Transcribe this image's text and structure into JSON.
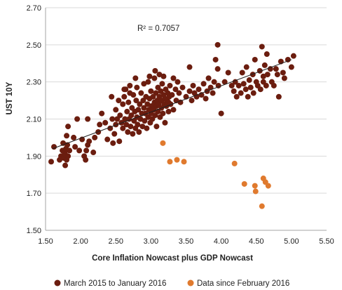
{
  "chart_data": {
    "type": "scatter",
    "xlabel": "Core Inflation Nowcast plus GDP Nowcast",
    "ylabel": "UST 10Y",
    "xlim": [
      1.5,
      5.5
    ],
    "ylim": [
      1.5,
      2.7
    ],
    "x_ticks": [
      "1.50",
      "2.00",
      "2.50",
      "3.00",
      "3.50",
      "4.00",
      "4.50",
      "5.00",
      "5.50"
    ],
    "y_ticks": [
      "1.50",
      "1.70",
      "1.90",
      "2.10",
      "2.30",
      "2.50",
      "2.70"
    ],
    "grid": "horizontal",
    "legend_position": "bottom",
    "annotation": "R² = 0.7057",
    "trendline": {
      "series": "March 2015 to January 2016",
      "x": [
        1.6,
        5.0
      ],
      "y": [
        1.94,
        2.42
      ]
    },
    "series": [
      {
        "name": "March 2015 to January 2016",
        "color": "#6B1D0F",
        "points": [
          [
            1.58,
            1.87
          ],
          [
            1.62,
            1.95
          ],
          [
            1.7,
            1.88
          ],
          [
            1.72,
            1.9
          ],
          [
            1.74,
            1.93
          ],
          [
            1.75,
            1.97
          ],
          [
            1.76,
            1.89
          ],
          [
            1.77,
            1.92
          ],
          [
            1.78,
            1.85
          ],
          [
            1.78,
            1.91
          ],
          [
            1.79,
            1.94
          ],
          [
            1.8,
            1.88
          ],
          [
            1.8,
            2.01
          ],
          [
            1.81,
            1.96
          ],
          [
            1.82,
            1.9
          ],
          [
            1.82,
            2.06
          ],
          [
            1.84,
            1.93
          ],
          [
            1.9,
            2.0
          ],
          [
            1.92,
            1.95
          ],
          [
            1.95,
            2.1
          ],
          [
            1.98,
            1.93
          ],
          [
            2.02,
            1.99
          ],
          [
            2.05,
            1.9
          ],
          [
            2.07,
            1.88
          ],
          [
            2.08,
            1.93
          ],
          [
            2.1,
            1.96
          ],
          [
            2.1,
            2.1
          ],
          [
            2.12,
            1.98
          ],
          [
            2.18,
            1.92
          ],
          [
            2.2,
            2.0
          ],
          [
            2.25,
            2.03
          ],
          [
            2.27,
            2.07
          ],
          [
            2.3,
            2.13
          ],
          [
            2.35,
            2.08
          ],
          [
            2.38,
            1.99
          ],
          [
            2.42,
            2.05
          ],
          [
            2.45,
            2.1
          ],
          [
            2.46,
            1.97
          ],
          [
            2.48,
            2.02
          ],
          [
            2.5,
            2.07
          ],
          [
            2.5,
            2.15
          ],
          [
            2.52,
            2.1
          ],
          [
            2.54,
            2.2
          ],
          [
            2.55,
            1.98
          ],
          [
            2.56,
            2.12
          ],
          [
            2.58,
            2.08
          ],
          [
            2.6,
            2.05
          ],
          [
            2.6,
            2.18
          ],
          [
            2.62,
            2.22
          ],
          [
            2.63,
            2.1
          ],
          [
            2.64,
            2.26
          ],
          [
            2.65,
            2.07
          ],
          [
            2.66,
            2.14
          ],
          [
            2.67,
            2.03
          ],
          [
            2.68,
            2.19
          ],
          [
            2.69,
            2.1
          ],
          [
            2.7,
            2.28
          ],
          [
            2.71,
            2.06
          ],
          [
            2.72,
            2.12
          ],
          [
            2.73,
            2.16
          ],
          [
            2.74,
            2.02
          ],
          [
            2.75,
            2.23
          ],
          [
            2.76,
            2.09
          ],
          [
            2.77,
            2.14
          ],
          [
            2.78,
            2.05
          ],
          [
            2.79,
            2.2
          ],
          [
            2.8,
            2.11
          ],
          [
            2.8,
            2.27
          ],
          [
            2.81,
            2.07
          ],
          [
            2.82,
            2.15
          ],
          [
            2.83,
            2.03
          ],
          [
            2.84,
            2.18
          ],
          [
            2.85,
            2.1
          ],
          [
            2.86,
            2.24
          ],
          [
            2.87,
            2.13
          ],
          [
            2.88,
            2.06
          ],
          [
            2.89,
            2.2
          ],
          [
            2.9,
            2.16
          ],
          [
            2.9,
            2.29
          ],
          [
            2.91,
            2.09
          ],
          [
            2.92,
            2.13
          ],
          [
            2.93,
            2.22
          ],
          [
            2.94,
            2.05
          ],
          [
            2.95,
            2.18
          ],
          [
            2.96,
            2.11
          ],
          [
            2.96,
            2.3
          ],
          [
            2.97,
            2.15
          ],
          [
            2.98,
            2.21
          ],
          [
            2.99,
            2.08
          ],
          [
            3.0,
            2.13
          ],
          [
            3.0,
            2.25
          ],
          [
            3.01,
            2.17
          ],
          [
            3.02,
            2.1
          ],
          [
            3.03,
            2.22
          ],
          [
            3.04,
            2.15
          ],
          [
            3.05,
            2.32
          ],
          [
            3.05,
            2.19
          ],
          [
            3.06,
            2.12
          ],
          [
            3.07,
            2.24
          ],
          [
            3.08,
            2.17
          ],
          [
            3.08,
            2.06
          ],
          [
            3.09,
            2.2
          ],
          [
            3.1,
            2.14
          ],
          [
            3.1,
            2.27
          ],
          [
            3.11,
            2.18
          ],
          [
            3.12,
            2.22
          ],
          [
            3.13,
            2.11
          ],
          [
            3.14,
            2.25
          ],
          [
            3.15,
            2.16
          ],
          [
            3.15,
            2.2
          ],
          [
            3.16,
            2.29
          ],
          [
            3.17,
            2.13
          ],
          [
            3.18,
            2.23
          ],
          [
            3.19,
            2.18
          ],
          [
            3.2,
            2.21
          ],
          [
            3.2,
            2.08
          ],
          [
            3.21,
            2.26
          ],
          [
            3.22,
            2.17
          ],
          [
            3.23,
            2.2
          ],
          [
            3.24,
            2.24
          ],
          [
            3.25,
            2.14
          ],
          [
            3.25,
            2.19
          ],
          [
            3.26,
            2.22
          ],
          [
            3.27,
            2.28
          ],
          [
            3.28,
            2.18
          ],
          [
            3.3,
            2.23
          ],
          [
            3.32,
            2.15
          ],
          [
            3.35,
            2.26
          ],
          [
            3.36,
            2.2
          ],
          [
            3.38,
            2.3
          ],
          [
            3.4,
            2.24
          ],
          [
            3.42,
            2.19
          ],
          [
            3.45,
            2.27
          ],
          [
            3.5,
            2.22
          ],
          [
            3.55,
            2.25
          ],
          [
            3.55,
            2.38
          ],
          [
            3.58,
            2.2
          ],
          [
            3.6,
            2.28
          ],
          [
            3.62,
            2.24
          ],
          [
            3.65,
            2.22
          ],
          [
            3.68,
            2.26
          ],
          [
            3.72,
            2.23
          ],
          [
            3.75,
            2.29
          ],
          [
            3.78,
            2.21
          ],
          [
            3.8,
            2.25
          ],
          [
            3.82,
            2.32
          ],
          [
            3.85,
            2.27
          ],
          [
            3.88,
            2.24
          ],
          [
            3.9,
            2.3
          ],
          [
            3.92,
            2.42
          ],
          [
            3.95,
            2.5
          ],
          [
            3.95,
            2.37
          ],
          [
            3.96,
            2.28
          ],
          [
            4.0,
            2.13
          ],
          [
            4.05,
            2.3
          ],
          [
            4.1,
            2.35
          ],
          [
            4.15,
            2.28
          ],
          [
            4.18,
            2.25
          ],
          [
            4.2,
            2.3
          ],
          [
            4.22,
            2.22
          ],
          [
            4.25,
            2.28
          ],
          [
            4.28,
            2.24
          ],
          [
            4.3,
            2.35
          ],
          [
            4.32,
            2.29
          ],
          [
            4.35,
            2.26
          ],
          [
            4.36,
            2.38
          ],
          [
            4.38,
            2.22
          ],
          [
            4.4,
            2.31
          ],
          [
            4.42,
            2.27
          ],
          [
            4.45,
            2.34
          ],
          [
            4.46,
            2.24
          ],
          [
            4.48,
            2.42
          ],
          [
            4.5,
            2.3
          ],
          [
            4.52,
            2.28
          ],
          [
            4.55,
            2.36
          ],
          [
            4.56,
            2.26
          ],
          [
            4.58,
            2.49
          ],
          [
            4.6,
            2.33
          ],
          [
            4.6,
            2.3
          ],
          [
            4.62,
            2.39
          ],
          [
            4.64,
            2.28
          ],
          [
            4.65,
            2.45
          ],
          [
            4.66,
            2.34
          ],
          [
            4.7,
            2.37
          ],
          [
            4.72,
            2.3
          ],
          [
            4.75,
            2.28
          ],
          [
            4.78,
            2.37
          ],
          [
            4.8,
            2.34
          ],
          [
            4.82,
            2.22
          ],
          [
            4.85,
            2.41
          ],
          [
            4.88,
            2.35
          ],
          [
            4.9,
            2.32
          ],
          [
            4.95,
            2.42
          ],
          [
            5.0,
            2.38
          ],
          [
            5.03,
            2.44
          ],
          [
            2.62,
            2.26
          ],
          [
            2.78,
            2.32
          ],
          [
            2.98,
            2.33
          ],
          [
            3.12,
            2.34
          ],
          [
            3.32,
            2.32
          ],
          [
            2.44,
            2.22
          ],
          [
            2.7,
            2.24
          ],
          [
            3.06,
            2.36
          ],
          [
            3.18,
            2.33
          ]
        ]
      },
      {
        "name": "Data since February 2016",
        "color": "#E07A2E",
        "points": [
          [
            3.17,
            1.97
          ],
          [
            3.27,
            1.87
          ],
          [
            3.37,
            1.88
          ],
          [
            3.47,
            1.87
          ],
          [
            4.19,
            1.86
          ],
          [
            4.33,
            1.75
          ],
          [
            4.48,
            1.74
          ],
          [
            4.49,
            1.71
          ],
          [
            4.58,
            1.63
          ],
          [
            4.6,
            1.78
          ],
          [
            4.63,
            1.76
          ],
          [
            4.67,
            1.74
          ]
        ]
      }
    ]
  }
}
